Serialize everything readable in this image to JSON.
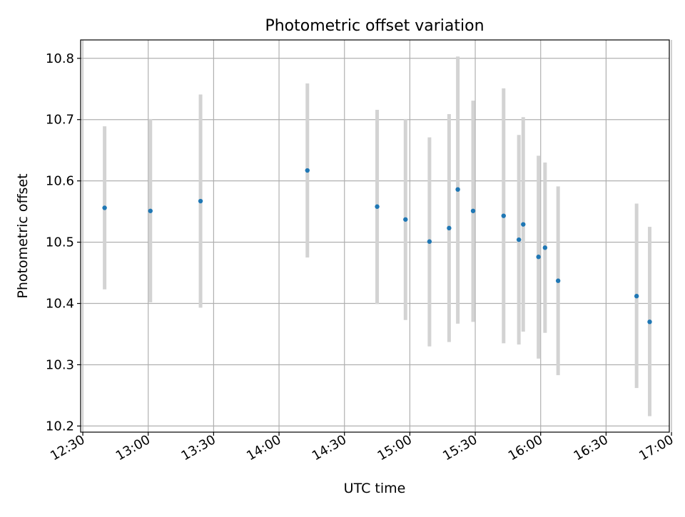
{
  "chart_data": {
    "type": "scatter",
    "title": "Photometric offset variation",
    "xlabel": "UTC time",
    "ylabel": "Photometric offset",
    "x_unit": "minutes of day (UTC)",
    "xlim": [
      "12:29",
      "16:59"
    ],
    "ylim": [
      10.19,
      10.83
    ],
    "grid": true,
    "x_ticks": [
      "12:30",
      "13:00",
      "13:30",
      "14:00",
      "14:30",
      "15:00",
      "15:30",
      "16:00",
      "16:30",
      "17:00"
    ],
    "y_ticks": [
      "10.2",
      "10.3",
      "10.4",
      "10.5",
      "10.6",
      "10.7",
      "10.8"
    ],
    "colors": {
      "point": "#1f77b4",
      "errorbar": "#d3d3d3",
      "grid": "#b0b0b0"
    },
    "points": [
      {
        "x": "12:40",
        "y": 10.556,
        "ylow": 10.423,
        "yhigh": 10.689
      },
      {
        "x": "13:01",
        "y": 10.551,
        "ylow": 10.402,
        "yhigh": 10.701
      },
      {
        "x": "13:24",
        "y": 10.567,
        "ylow": 10.393,
        "yhigh": 10.741
      },
      {
        "x": "14:13",
        "y": 10.617,
        "ylow": 10.475,
        "yhigh": 10.759
      },
      {
        "x": "14:45",
        "y": 10.558,
        "ylow": 10.399,
        "yhigh": 10.716
      },
      {
        "x": "14:58",
        "y": 10.537,
        "ylow": 10.373,
        "yhigh": 10.701
      },
      {
        "x": "15:09",
        "y": 10.501,
        "ylow": 10.33,
        "yhigh": 10.671
      },
      {
        "x": "15:18",
        "y": 10.523,
        "ylow": 10.337,
        "yhigh": 10.709
      },
      {
        "x": "15:22",
        "y": 10.586,
        "ylow": 10.367,
        "yhigh": 10.803
      },
      {
        "x": "15:29",
        "y": 10.551,
        "ylow": 10.37,
        "yhigh": 10.731
      },
      {
        "x": "15:43",
        "y": 10.543,
        "ylow": 10.335,
        "yhigh": 10.751
      },
      {
        "x": "15:50",
        "y": 10.504,
        "ylow": 10.333,
        "yhigh": 10.675
      },
      {
        "x": "15:52",
        "y": 10.529,
        "ylow": 10.354,
        "yhigh": 10.704
      },
      {
        "x": "15:59",
        "y": 10.476,
        "ylow": 10.31,
        "yhigh": 10.641
      },
      {
        "x": "16:02",
        "y": 10.491,
        "ylow": 10.352,
        "yhigh": 10.63
      },
      {
        "x": "16:08",
        "y": 10.437,
        "ylow": 10.283,
        "yhigh": 10.591
      },
      {
        "x": "16:44",
        "y": 10.412,
        "ylow": 10.262,
        "yhigh": 10.563
      },
      {
        "x": "16:50",
        "y": 10.37,
        "ylow": 10.216,
        "yhigh": 10.525
      }
    ]
  }
}
